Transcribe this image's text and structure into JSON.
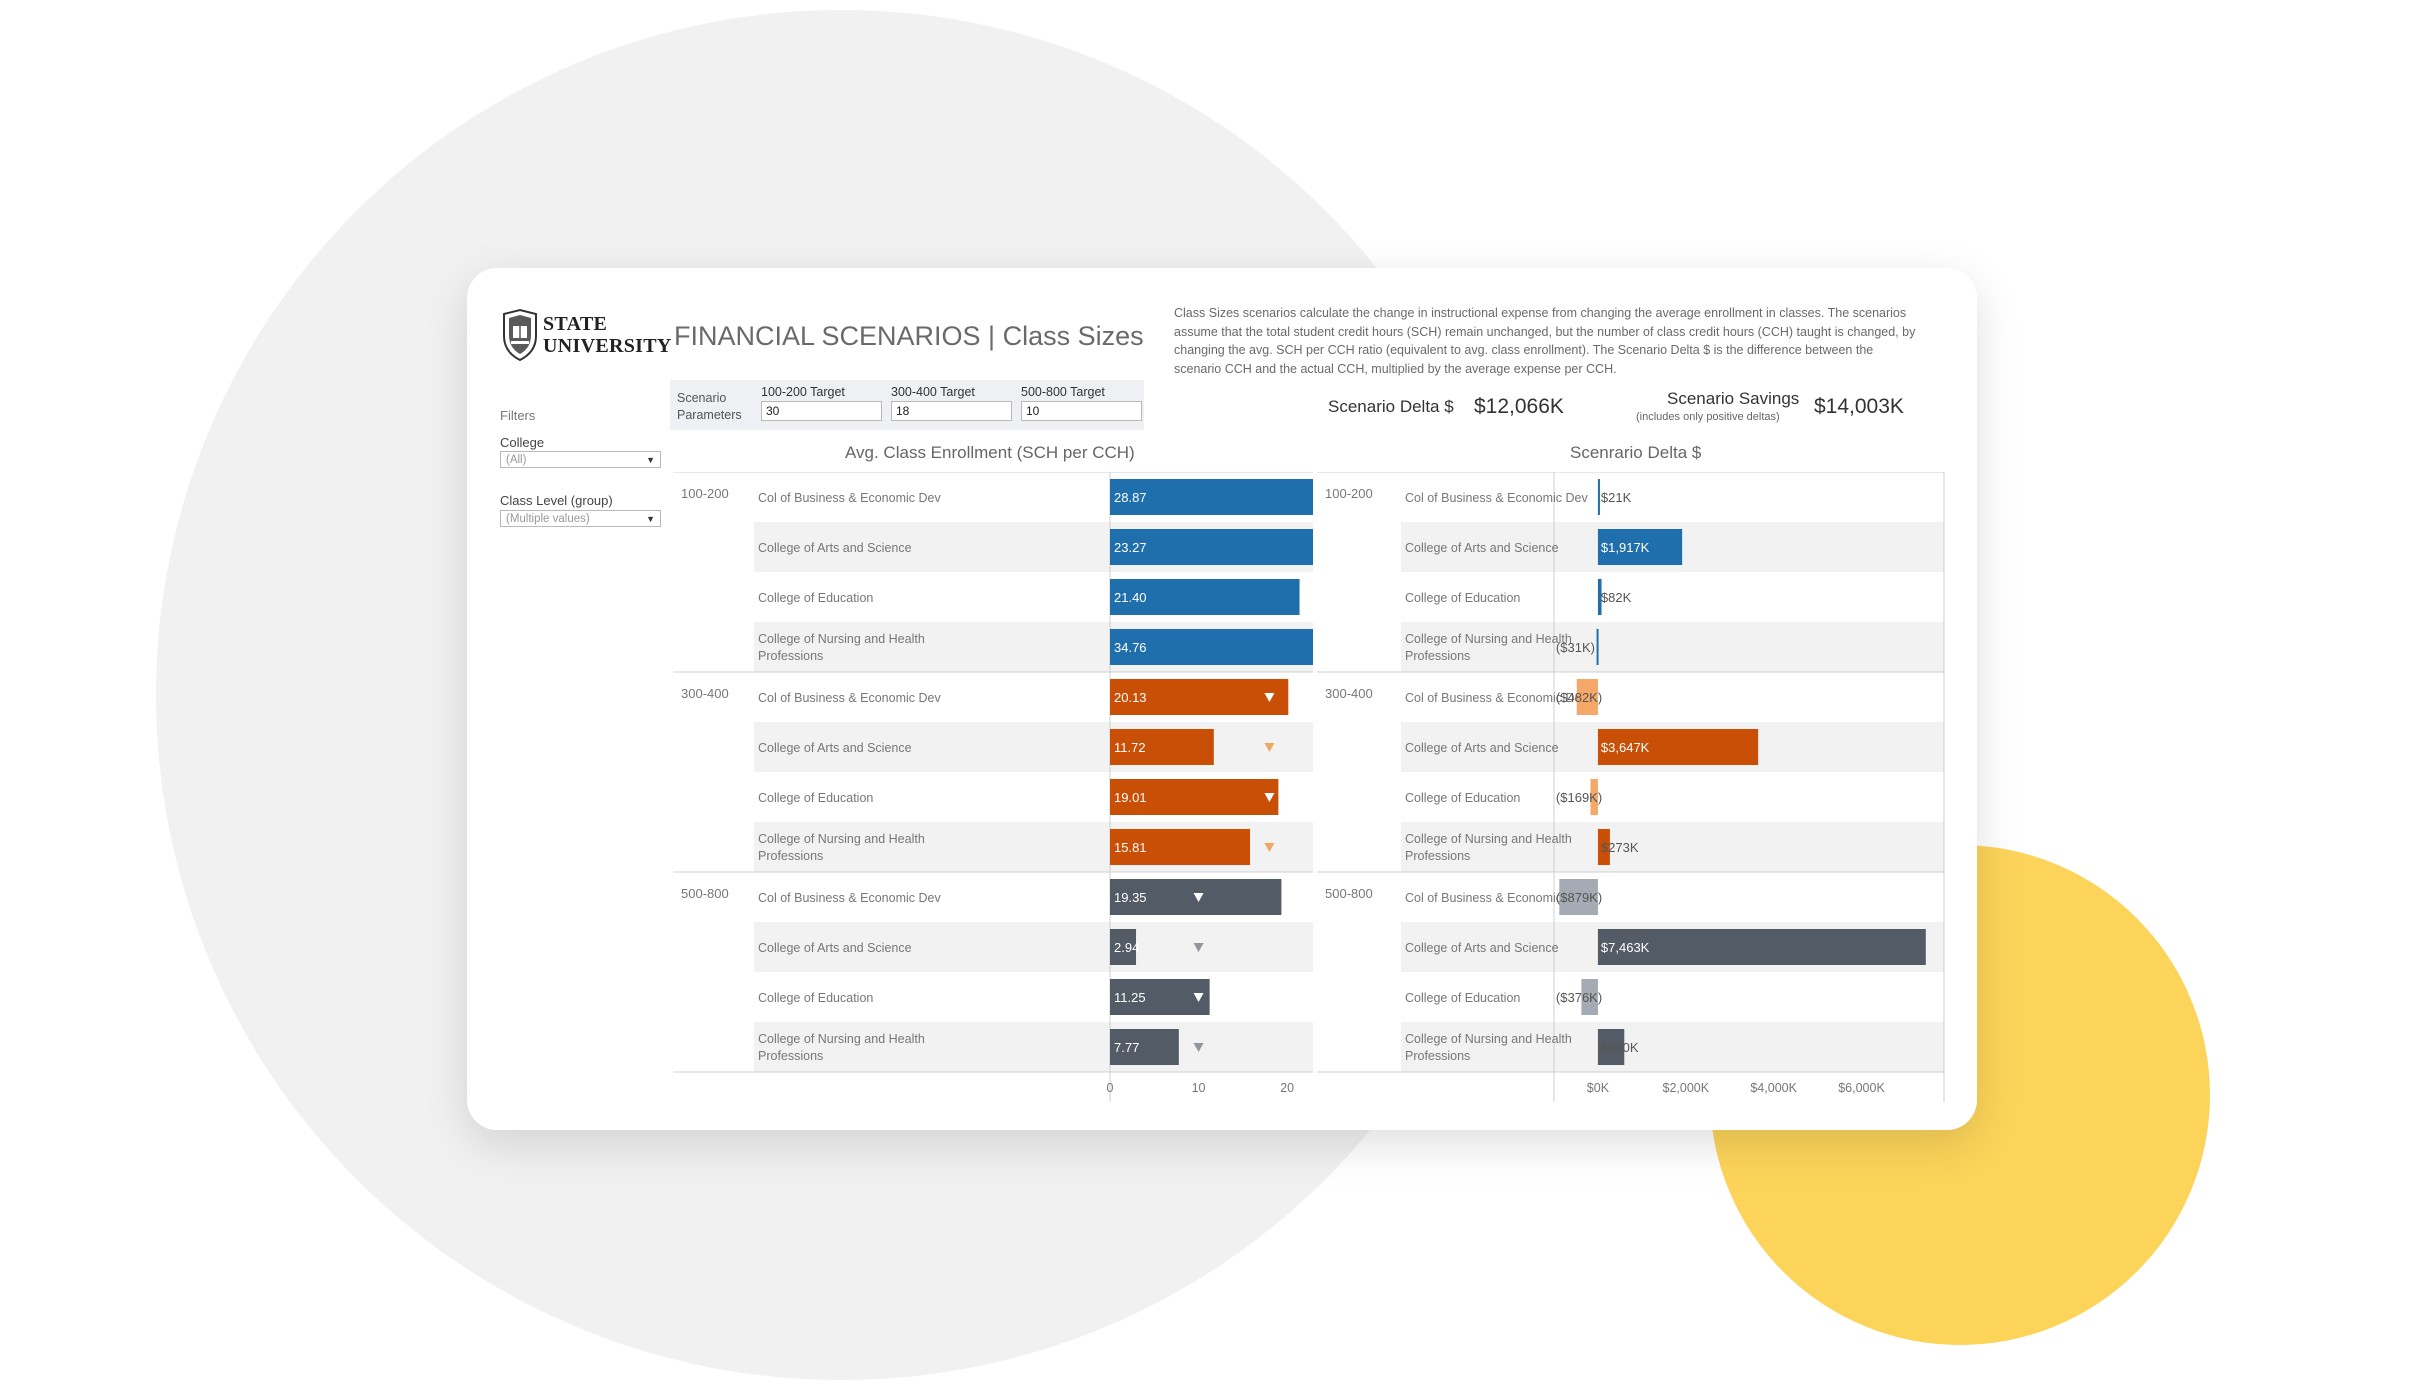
{
  "logo": {
    "line1": "STATE",
    "line2": "UNIVERSITY"
  },
  "header": {
    "title": "FINANCIAL SCENARIOS | Class Sizes"
  },
  "description": "Class Sizes scenarios calculate the change in instructional expense from changing the average enrollment in classes. The scenarios assume that the total student credit hours (SCH) remain unchanged, but the number of class credit hours (CCH) taught is changed, by changing the avg. SCH per CCH ratio (equivalent to avg. class enrollment). The Scenario Delta $ is the difference between the scenario CCH and the actual CCH, multiplied by the average expense per CCH.",
  "filters": {
    "heading": "Filters",
    "college": {
      "label": "College",
      "value": "(All)"
    },
    "class_level": {
      "label": "Class Level (group)",
      "value": "(Multiple values)"
    }
  },
  "parameters": {
    "label_line1": "Scenario",
    "label_line2": "Parameters",
    "targets": [
      {
        "label": "100-200 Target",
        "value": "30"
      },
      {
        "label": "300-400 Target",
        "value": "18"
      },
      {
        "label": "500-800 Target",
        "value": "10"
      }
    ]
  },
  "kpis": {
    "delta": {
      "label": "Scenario Delta $",
      "value": "$12,066K"
    },
    "savings": {
      "label": "Scenario Savings",
      "note": "(includes only positive deltas)",
      "value": "$14,003K"
    }
  },
  "colors": {
    "blue": "#1f6fad",
    "orange": "#c84f05",
    "orange_light": "#f5a868",
    "slate": "#525b66",
    "slate_light": "#a4abb4",
    "target_blue": "#8fb3d6",
    "target_orange": "#f0a864",
    "target_slate": "#8f969e",
    "band": "#f2f2f2",
    "yellow": "#fdd45a"
  },
  "chart_data": [
    {
      "type": "bar",
      "title": "Avg. Class Enrollment (SCH per CCH)",
      "xlim": [
        0,
        35
      ],
      "xticks": [
        "0",
        "10",
        "20",
        "30"
      ],
      "groups": [
        {
          "level": "100-200",
          "target": 30,
          "color": "blue",
          "target_color": "target_blue",
          "rows": [
            {
              "college": "Col of Business & Economic Dev",
              "value": 28.87,
              "label": "28.87"
            },
            {
              "college": "College of Arts and Science",
              "value": 23.27,
              "label": "23.27"
            },
            {
              "college": "College of Education",
              "value": 21.4,
              "label": "21.40"
            },
            {
              "college": "College of Nursing and Health Professions",
              "value": 34.76,
              "label": "34.76"
            }
          ]
        },
        {
          "level": "300-400",
          "target": 18,
          "color": "orange",
          "target_color": "target_orange",
          "rows": [
            {
              "college": "Col of Business & Economic Dev",
              "value": 20.13,
              "label": "20.13"
            },
            {
              "college": "College of Arts and Science",
              "value": 11.72,
              "label": "11.72"
            },
            {
              "college": "College of Education",
              "value": 19.01,
              "label": "19.01"
            },
            {
              "college": "College of Nursing and Health Professions",
              "value": 15.81,
              "label": "15.81"
            }
          ]
        },
        {
          "level": "500-800",
          "target": 10,
          "color": "slate",
          "target_color": "target_slate",
          "rows": [
            {
              "college": "Col of Business & Economic Dev",
              "value": 19.35,
              "label": "19.35"
            },
            {
              "college": "College of Arts and Science",
              "value": 2.94,
              "label": "2.94"
            },
            {
              "college": "College of Education",
              "value": 11.25,
              "label": "11.25"
            },
            {
              "college": "College of Nursing and Health Professions",
              "value": 7.77,
              "label": "7.77"
            }
          ]
        }
      ]
    },
    {
      "type": "bar",
      "title": "Scenrario Delta $",
      "units": "$K",
      "xlim": [
        -1000,
        7650
      ],
      "xticks": [
        "$0K",
        "$2,000K",
        "$4,000K",
        "$6,000K"
      ],
      "groups": [
        {
          "level": "100-200",
          "color": "blue",
          "neg_color": "blue",
          "rows": [
            {
              "college": "Col of Business & Economic Dev",
              "value": 21,
              "label": "$21K"
            },
            {
              "college": "College of Arts and Science",
              "value": 1917,
              "label": "$1,917K"
            },
            {
              "college": "College of Education",
              "value": 82,
              "label": "$82K"
            },
            {
              "college": "College of Nursing and Health Professions",
              "value": -31,
              "label": "($31K)"
            }
          ]
        },
        {
          "level": "300-400",
          "color": "orange",
          "neg_color": "orange_light",
          "rows": [
            {
              "college": "Col of Business & Economic Dev",
              "value": -482,
              "label": "($482K)"
            },
            {
              "college": "College of Arts and Science",
              "value": 3647,
              "label": "$3,647K"
            },
            {
              "college": "College of Education",
              "value": -169,
              "label": "($169K)"
            },
            {
              "college": "College of Nursing and Health Professions",
              "value": 273,
              "label": "$273K"
            }
          ]
        },
        {
          "level": "500-800",
          "color": "slate",
          "neg_color": "slate_light",
          "rows": [
            {
              "college": "Col of Business & Economic Dev",
              "value": -879,
              "label": "($879K)"
            },
            {
              "college": "College of Arts and Science",
              "value": 7463,
              "label": "$7,463K"
            },
            {
              "college": "College of Education",
              "value": -376,
              "label": "($376K)"
            },
            {
              "college": "College of Nursing and Health Professions",
              "value": 600,
              "label": "$600K"
            }
          ]
        }
      ]
    }
  ]
}
